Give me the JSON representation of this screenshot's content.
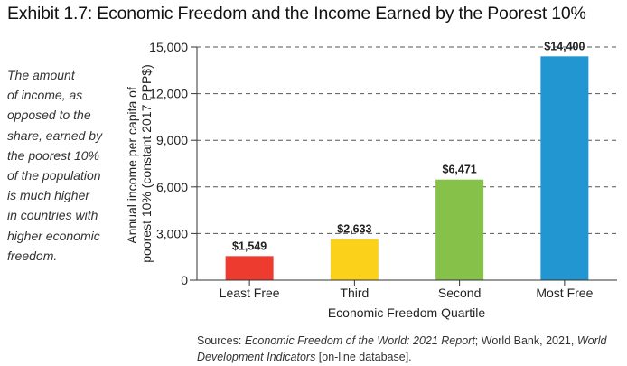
{
  "page": {
    "title": "Exhibit 1.7: Economic Freedom and the Income Earned by the Poorest 10%",
    "side_note_lines": [
      "The amount",
      "of income, as",
      "opposed to the",
      "share, earned by",
      "the poorest 10%",
      "of the population",
      "is much higher",
      "in countries with",
      "higher economic",
      "freedom."
    ],
    "sources": {
      "prefix": "Sources: ",
      "title1": "Economic Freedom of the World: 2021 Report",
      "mid": "; World Bank, 2021, ",
      "title2": "World Development Indicators",
      "suffix": " [on-line database]."
    }
  },
  "chart_data": {
    "type": "bar",
    "categories": [
      "Least Free",
      "Third",
      "Second",
      "Most Free"
    ],
    "values": [
      1549,
      2633,
      6471,
      14400
    ],
    "data_labels": [
      "$1,549",
      "$2,633",
      "$6,471",
      "$14,400"
    ],
    "colors": [
      "#ee3b2f",
      "#fbd219",
      "#86c24a",
      "#2196d0"
    ],
    "xlabel": "Economic Freedom Quartile",
    "ylabel_lines": [
      "Annual income per capita of",
      "poorest 10% (constant 2017 PPP$)"
    ],
    "ylim": [
      0,
      15000
    ],
    "yticks": [
      0,
      3000,
      6000,
      9000,
      12000,
      15000
    ],
    "ytick_labels": [
      "0",
      "3,000",
      "6,000",
      "9,000",
      "12,000",
      "15,000"
    ],
    "grid": "dashed horizontal"
  }
}
